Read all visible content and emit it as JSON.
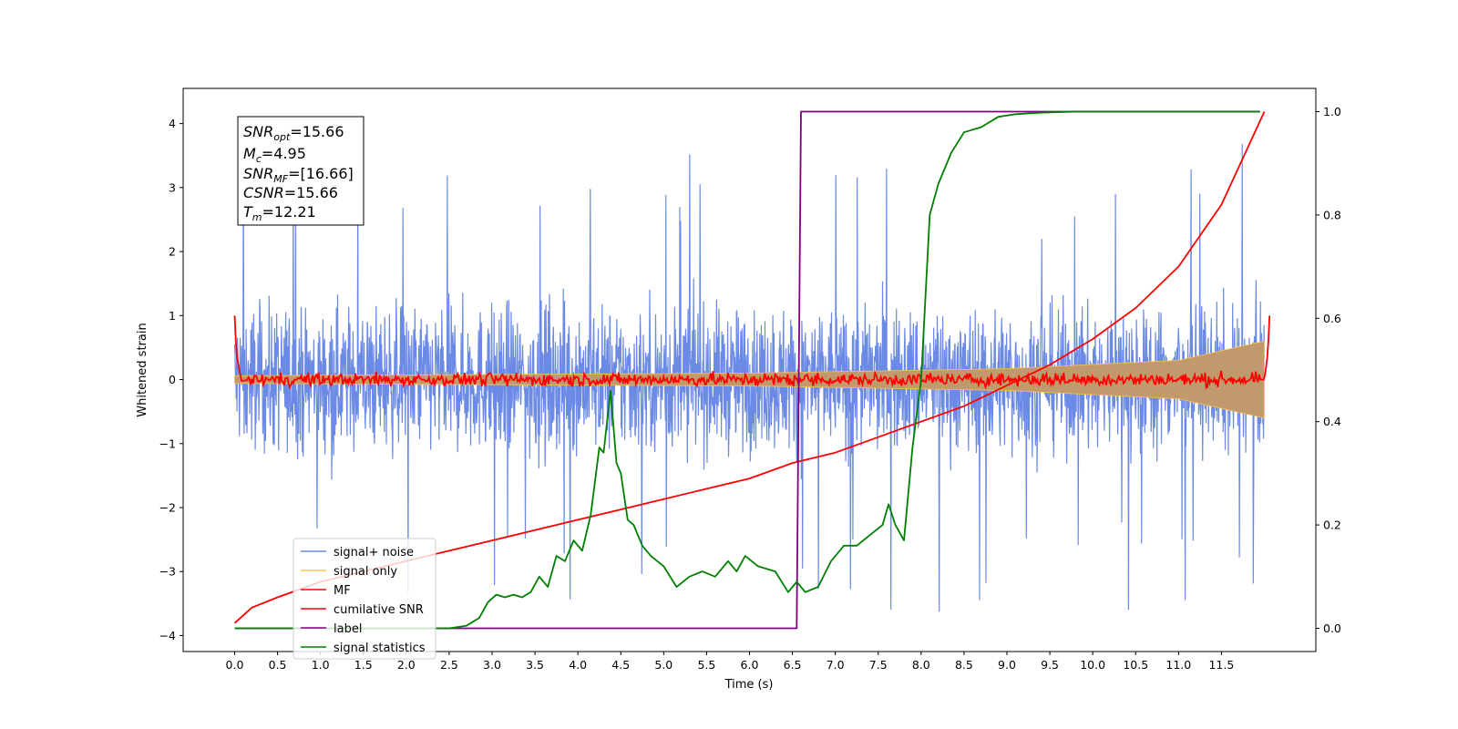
{
  "chart_data": {
    "type": "line",
    "xlabel": "Time (s)",
    "ylabel": "Whitened strain",
    "xlim": [
      -0.6,
      12.6
    ],
    "ylim": [
      -4.25,
      4.55
    ],
    "y2lim": [
      -0.045,
      1.045
    ],
    "x_ticks": [
      "0.0",
      "0.5",
      "1.0",
      "1.5",
      "2.0",
      "2.5",
      "3.0",
      "3.5",
      "4.0",
      "4.5",
      "5.0",
      "5.5",
      "6.0",
      "6.5",
      "7.0",
      "7.5",
      "8.0",
      "8.5",
      "9.0",
      "9.5",
      "10.0",
      "10.5",
      "11.0",
      "11.5"
    ],
    "y_ticks": [
      "4",
      "3",
      "2",
      "1",
      "0",
      "−1",
      "−2",
      "−3",
      "−4"
    ],
    "y2_ticks": [
      "1.0",
      "0.8",
      "0.6",
      "0.4",
      "0.2",
      "0.0"
    ],
    "grid": false,
    "legend_position": "lower-left",
    "colors": {
      "signal_noise": "#6b8ae6",
      "signal_only": "#ffc04d",
      "signal_fill": "#c09a6c",
      "mf": "#ff0000",
      "cumulative_snr": "#ff0000",
      "label": "#800080",
      "signal_statistics": "#008000"
    },
    "annotations": {
      "snr_opt": {
        "symbol": "SNR",
        "sub": "opt",
        "value": "=15.66"
      },
      "mc": {
        "symbol": "M",
        "sub": "c",
        "value": "=4.95"
      },
      "snr_mf": {
        "symbol": "SNR",
        "sub": "MF",
        "value": "=[16.66]"
      },
      "csnr": {
        "symbol": "CSNR",
        "sub": "",
        "value": "=15.66"
      },
      "tm": {
        "symbol": "T",
        "sub": "m",
        "value": "=12.21"
      }
    },
    "series": [
      {
        "name": "signal+ noise",
        "description_axis": "left",
        "envelope": {
          "t_start": 0.0,
          "t_end": 12.0,
          "abs_max": 1.9,
          "spike_max": 4.17,
          "spike_min": -3.85
        }
      },
      {
        "name": "signal only",
        "description_axis": "left",
        "amplitude": {
          "t": [
            0.0,
            6.0,
            9.0,
            11.0,
            12.0
          ],
          "a": [
            0.06,
            0.1,
            0.17,
            0.3,
            0.6
          ]
        }
      },
      {
        "name": "MF",
        "description_axis": "left",
        "t": [
          0.0,
          0.02,
          0.08,
          0.2,
          12.0,
          12.04,
          12.06
        ],
        "y": [
          1.0,
          0.4,
          -0.02,
          0.0,
          0.0,
          0.4,
          1.0
        ],
        "jitter": 0.05
      },
      {
        "name": "cumilative SNR",
        "description_axis": "right",
        "t": [
          0.0,
          0.2,
          0.5,
          1.0,
          1.5,
          2.0,
          2.5,
          3.0,
          3.5,
          4.0,
          4.5,
          5.0,
          5.5,
          6.0,
          6.5,
          7.0,
          7.5,
          8.0,
          8.5,
          9.0,
          9.5,
          10.0,
          10.5,
          11.0,
          11.5,
          12.0
        ],
        "y": [
          0.01,
          0.04,
          0.06,
          0.09,
          0.11,
          0.13,
          0.15,
          0.17,
          0.19,
          0.21,
          0.23,
          0.25,
          0.27,
          0.29,
          0.32,
          0.34,
          0.37,
          0.4,
          0.43,
          0.47,
          0.51,
          0.56,
          0.62,
          0.7,
          0.82,
          1.0
        ]
      },
      {
        "name": "label",
        "description_axis": "right",
        "t": [
          0.0,
          6.55,
          6.6,
          11.95
        ],
        "y": [
          0.0,
          0.0,
          1.0,
          1.0
        ]
      },
      {
        "name": "signal statistics",
        "description_axis": "right",
        "t": [
          0.0,
          1.0,
          2.0,
          2.5,
          2.7,
          2.85,
          2.95,
          3.05,
          3.15,
          3.25,
          3.35,
          3.45,
          3.55,
          3.65,
          3.75,
          3.85,
          3.95,
          4.05,
          4.15,
          4.25,
          4.3,
          4.38,
          4.45,
          4.5,
          4.58,
          4.65,
          4.75,
          4.85,
          5.0,
          5.15,
          5.3,
          5.45,
          5.6,
          5.75,
          5.85,
          5.95,
          6.1,
          6.3,
          6.45,
          6.55,
          6.65,
          6.8,
          6.95,
          7.1,
          7.25,
          7.4,
          7.55,
          7.62,
          7.7,
          7.8,
          7.9,
          8.0,
          8.1,
          8.2,
          8.35,
          8.5,
          8.7,
          8.9,
          9.1,
          9.4,
          9.8,
          10.5,
          11.95
        ],
        "y": [
          0.0,
          0.0,
          0.0,
          0.0,
          0.005,
          0.02,
          0.05,
          0.065,
          0.06,
          0.065,
          0.06,
          0.07,
          0.1,
          0.08,
          0.14,
          0.13,
          0.17,
          0.15,
          0.22,
          0.35,
          0.34,
          0.46,
          0.32,
          0.3,
          0.21,
          0.2,
          0.16,
          0.14,
          0.12,
          0.08,
          0.1,
          0.11,
          0.1,
          0.13,
          0.11,
          0.14,
          0.12,
          0.11,
          0.07,
          0.09,
          0.07,
          0.08,
          0.13,
          0.16,
          0.16,
          0.18,
          0.2,
          0.24,
          0.2,
          0.17,
          0.35,
          0.48,
          0.8,
          0.86,
          0.92,
          0.96,
          0.97,
          0.99,
          0.995,
          0.998,
          1.0,
          1.0,
          1.0
        ]
      }
    ]
  }
}
